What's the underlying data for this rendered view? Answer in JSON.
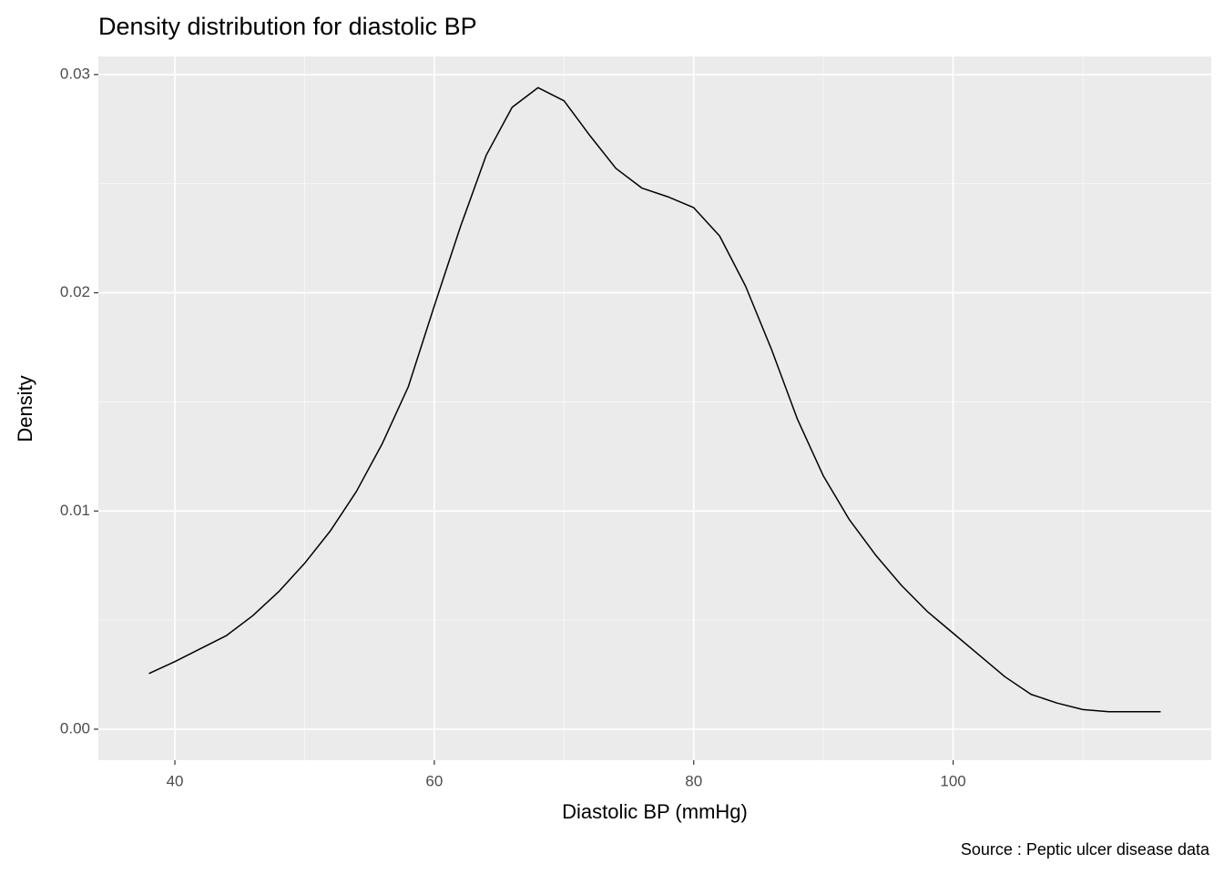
{
  "chart_data": {
    "type": "line",
    "title": "Density distribution for diastolic BP",
    "x_label": "Diastolic BP (mmHg)",
    "y_label": "Density",
    "caption": "Source : Peptic ulcer disease data",
    "x": [
      38,
      40,
      42,
      44,
      46,
      48,
      50,
      52,
      54,
      56,
      58,
      60,
      62,
      64,
      66,
      68,
      70,
      72,
      74,
      76,
      78,
      80,
      82,
      84,
      86,
      88,
      90,
      92,
      94,
      96,
      98,
      100,
      102,
      104,
      106,
      108,
      110,
      112,
      114,
      116
    ],
    "values": [
      0.00255,
      0.0031,
      0.0037,
      0.0043,
      0.0052,
      0.0063,
      0.0076,
      0.0091,
      0.0109,
      0.0131,
      0.0157,
      0.0194,
      0.023,
      0.0263,
      0.0285,
      0.0294,
      0.0288,
      0.0272,
      0.0257,
      0.0248,
      0.0244,
      0.0239,
      0.0226,
      0.0203,
      0.0174,
      0.0142,
      0.0116,
      0.0096,
      0.008,
      0.0066,
      0.0054,
      0.0044,
      0.0034,
      0.0024,
      0.0016,
      0.0012,
      0.0009,
      0.0008,
      0.0008,
      0.0008
    ],
    "color": "#000000",
    "xlim": [
      34.1,
      119.9
    ],
    "ylim": [
      -0.00142,
      0.03083
    ],
    "xticks": [
      40,
      60,
      80,
      100
    ],
    "yticks": [
      {
        "value": 0,
        "label": "0.00"
      },
      0.01,
      0.02,
      0.03
    ],
    "grid": true
  }
}
